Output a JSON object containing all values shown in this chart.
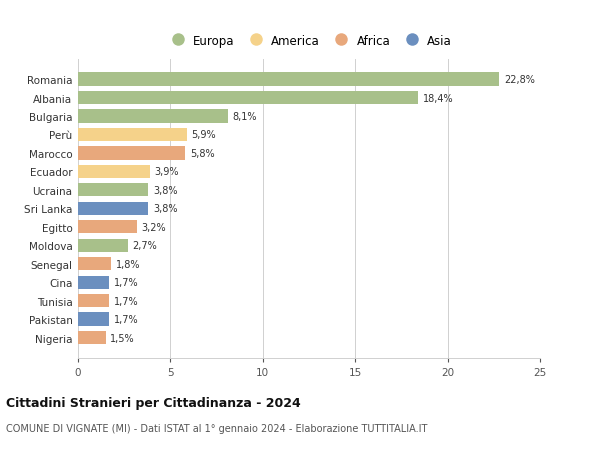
{
  "countries": [
    "Romania",
    "Albania",
    "Bulgaria",
    "Perù",
    "Marocco",
    "Ecuador",
    "Ucraina",
    "Sri Lanka",
    "Egitto",
    "Moldova",
    "Senegal",
    "Cina",
    "Tunisia",
    "Pakistan",
    "Nigeria"
  ],
  "values": [
    22.8,
    18.4,
    8.1,
    5.9,
    5.8,
    3.9,
    3.8,
    3.8,
    3.2,
    2.7,
    1.8,
    1.7,
    1.7,
    1.7,
    1.5
  ],
  "labels": [
    "22,8%",
    "18,4%",
    "8,1%",
    "5,9%",
    "5,8%",
    "3,9%",
    "3,8%",
    "3,8%",
    "3,2%",
    "2,7%",
    "1,8%",
    "1,7%",
    "1,7%",
    "1,7%",
    "1,5%"
  ],
  "continents": [
    "Europa",
    "Europa",
    "Europa",
    "America",
    "Africa",
    "America",
    "Europa",
    "Asia",
    "Africa",
    "Europa",
    "Africa",
    "Asia",
    "Africa",
    "Asia",
    "Africa"
  ],
  "colors": {
    "Europa": "#a8c08a",
    "America": "#f5d28a",
    "Africa": "#e8a87c",
    "Asia": "#6b8fbf"
  },
  "legend_order": [
    "Europa",
    "America",
    "Africa",
    "Asia"
  ],
  "legend_colors": [
    "#a8c08a",
    "#f5d28a",
    "#e8a87c",
    "#6b8fbf"
  ],
  "xlim": [
    0,
    25
  ],
  "xticks": [
    0,
    5,
    10,
    15,
    20,
    25
  ],
  "title": "Cittadini Stranieri per Cittadinanza - 2024",
  "subtitle": "COMUNE DI VIGNATE (MI) - Dati ISTAT al 1° gennaio 2024 - Elaborazione TUTTITALIA.IT",
  "background_color": "#ffffff",
  "grid_color": "#d0d0d0",
  "bar_height": 0.72
}
